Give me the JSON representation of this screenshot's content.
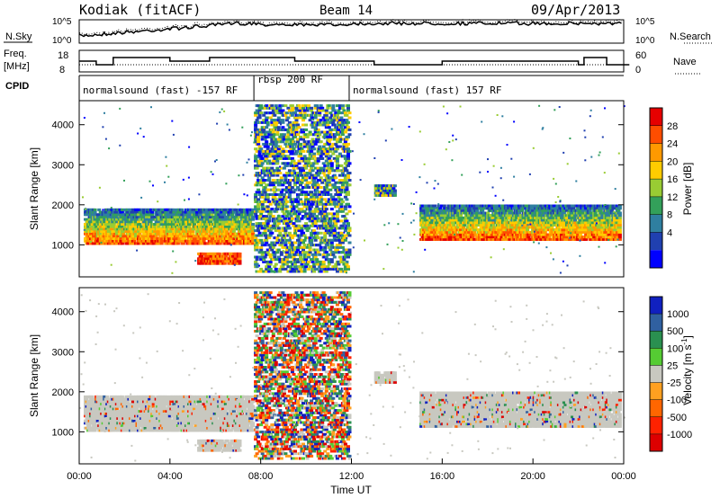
{
  "header": {
    "station": "Kodiak (fitACF)",
    "beam": "Beam 14",
    "date": "09/Apr/2013"
  },
  "strips": {
    "nsky": {
      "left_label": "N.Sky",
      "right_label": "N.Search",
      "left_ticks": [
        "10^5",
        "10^0"
      ],
      "right_ticks": [
        "10^5",
        "10^0"
      ]
    },
    "freq": {
      "left_label_1": "Freq.",
      "left_label_2": "[MHz]",
      "right_label": "Nave",
      "left_ticks": [
        "18",
        "8"
      ],
      "right_ticks": [
        "60",
        "0"
      ]
    },
    "cpid": {
      "label": "CPID",
      "segments": [
        {
          "text": "normalsound (fast) -157 RF",
          "start_h": 0,
          "end_h": 7.7
        },
        {
          "text": "rbsp 200 RF",
          "start_h": 7.7,
          "end_h": 11.9
        },
        {
          "text": "normalsound (fast) 157 RF",
          "start_h": 11.9,
          "end_h": 24
        }
      ]
    }
  },
  "colorbars": {
    "power": {
      "label": "Power [dB]",
      "ticks": [
        "28",
        "24",
        "20",
        "16",
        "12",
        "8",
        "4"
      ],
      "colors": [
        "#e60000",
        "#ff4d00",
        "#ff9900",
        "#ffcc00",
        "#99cc33",
        "#33a05a",
        "#2f7fa0",
        "#2040b0",
        "#0000ff"
      ]
    },
    "velocity": {
      "label": "Velocity [m s",
      "label_sup": "-1",
      "label_end": "]",
      "ticks": [
        "1000",
        "500",
        "100",
        "25",
        "-25",
        "-100",
        "-500",
        "-1000"
      ],
      "colors": [
        "#1020c0",
        "#3060a0",
        "#2a9050",
        "#55cc33",
        "#c8c8c0",
        "#ffa020",
        "#ff6600",
        "#ff2200",
        "#dd0000"
      ]
    }
  },
  "chart_data": [
    {
      "type": "heatmap",
      "title": "Power",
      "ylabel": "Slant Range [km]",
      "xlim": [
        0,
        24
      ],
      "ylim": [
        200,
        4600
      ],
      "yticks": [
        "4000",
        "3000",
        "2000",
        "1000"
      ],
      "ytick_values": [
        4000,
        3000,
        2000,
        1000
      ],
      "bands": [
        {
          "t0": 0.2,
          "t1": 7.6,
          "r0": 1000,
          "r1": 1900,
          "level": "mid-high"
        },
        {
          "t0": 5.2,
          "t1": 7.0,
          "r0": 500,
          "r1": 750,
          "level": "high"
        },
        {
          "t0": 7.7,
          "t1": 11.9,
          "r0": 300,
          "r1": 4500,
          "level": "low-mid"
        },
        {
          "t0": 13.0,
          "t1": 13.9,
          "r0": 2200,
          "r1": 2500,
          "level": "low"
        },
        {
          "t0": 15.0,
          "t1": 23.8,
          "r0": 1100,
          "r1": 2000,
          "level": "mid-high"
        }
      ]
    },
    {
      "type": "heatmap",
      "title": "Velocity",
      "ylabel": "Slant Range [km]",
      "xlim": [
        0,
        24
      ],
      "ylim": [
        200,
        4600
      ],
      "yticks": [
        "4000",
        "3000",
        "2000",
        "1000"
      ],
      "ytick_values": [
        4000,
        3000,
        2000,
        1000
      ],
      "xlabel": "Time UT",
      "xticks": [
        "00:00",
        "04:00",
        "08:00",
        "12:00",
        "16:00",
        "20:00",
        "00:00"
      ],
      "xtick_values": [
        0,
        4,
        8,
        12,
        16,
        20,
        24
      ]
    }
  ]
}
